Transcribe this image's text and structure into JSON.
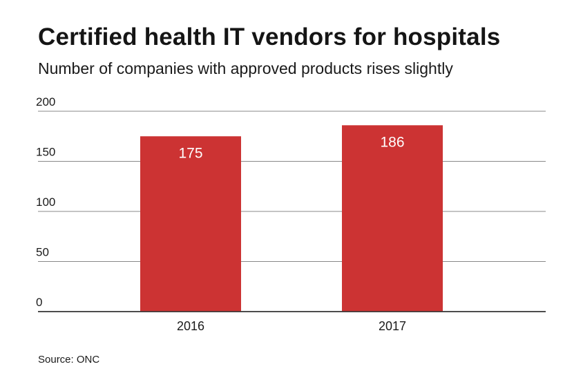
{
  "chart_data": {
    "type": "bar",
    "title": "Certified health IT vendors for hospitals",
    "subtitle": "Number of companies with approved products rises slightly",
    "categories": [
      "2016",
      "2017"
    ],
    "values": [
      175,
      186
    ],
    "data_labels": [
      "175",
      "186"
    ],
    "xlabel": "",
    "ylabel": "",
    "ylim": [
      0,
      200
    ],
    "yticks": [
      0,
      50,
      100,
      150,
      200
    ],
    "ytick_labels": [
      "0",
      "50",
      "100",
      "150",
      "200"
    ],
    "grid": true,
    "source": "Source: ONC",
    "bar_color": "#cc3333",
    "label_color": "#ffffff",
    "grid_color": "#888888",
    "text_color": "#1a1a1a"
  }
}
